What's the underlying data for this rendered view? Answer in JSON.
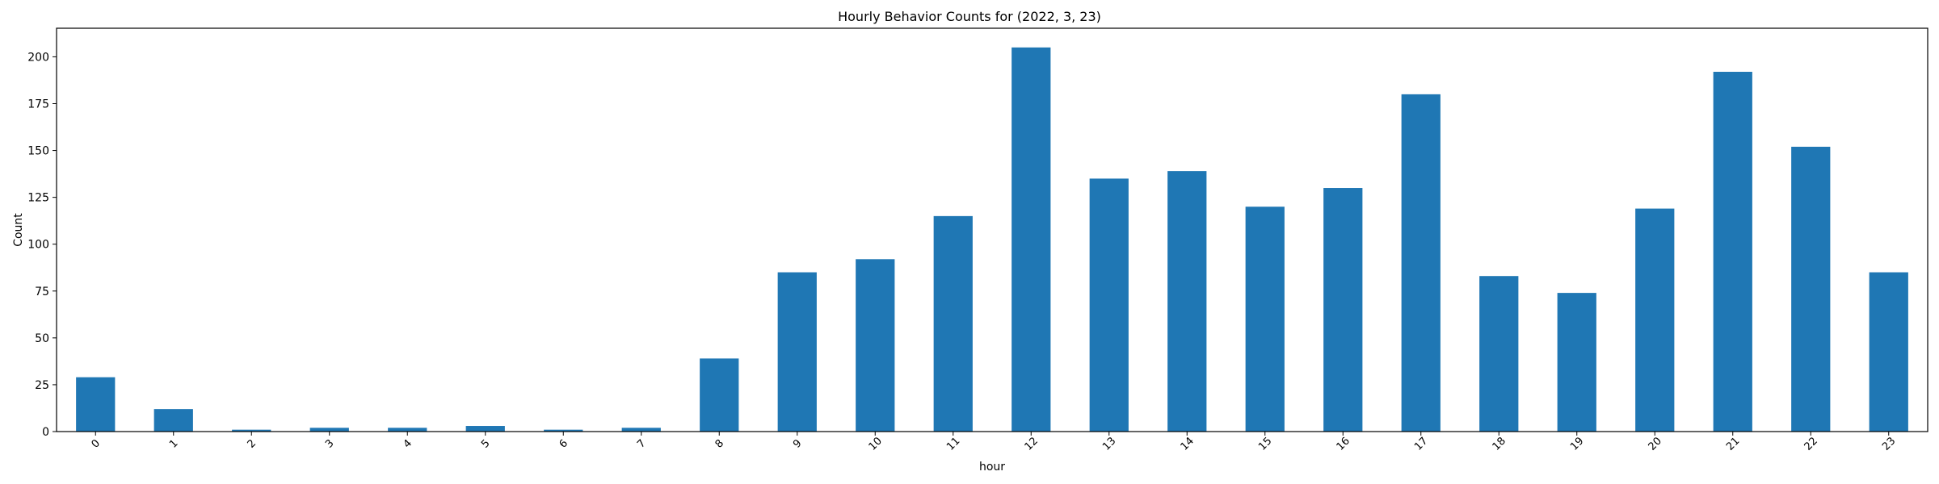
{
  "chart_data": {
    "type": "bar",
    "title": "Hourly Behavior Counts for (2022, 3, 23)",
    "xlabel": "hour",
    "ylabel": "Count",
    "categories": [
      "0",
      "1",
      "2",
      "3",
      "4",
      "5",
      "6",
      "7",
      "8",
      "9",
      "10",
      "11",
      "12",
      "13",
      "14",
      "15",
      "16",
      "17",
      "18",
      "19",
      "20",
      "21",
      "22",
      "23"
    ],
    "values": [
      29,
      12,
      1,
      2,
      2,
      3,
      1,
      2,
      39,
      85,
      92,
      115,
      205,
      135,
      139,
      120,
      130,
      180,
      83,
      74,
      119,
      192,
      152,
      85
    ],
    "ylim": [
      0,
      215.25
    ],
    "yticks": [
      0,
      25,
      50,
      75,
      100,
      125,
      150,
      175,
      200
    ],
    "grid": false,
    "legend": "none",
    "colors": {
      "bar": "#1f77b4",
      "axis": "#000000",
      "background": "#ffffff"
    }
  }
}
